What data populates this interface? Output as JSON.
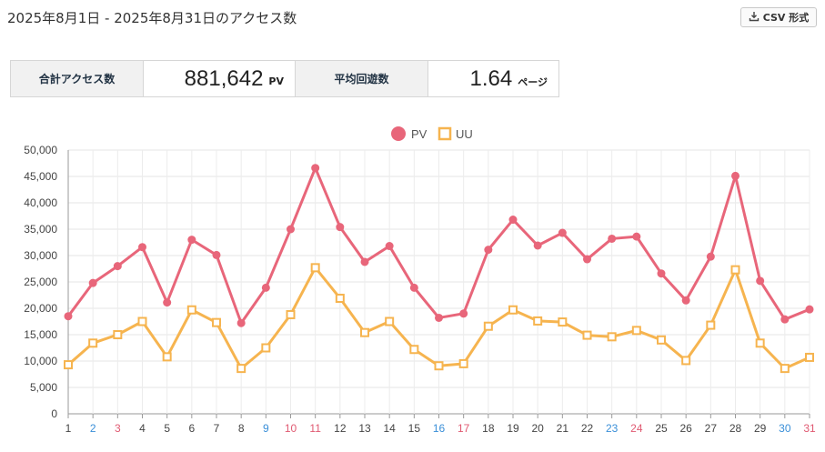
{
  "header": {
    "title": "2025年8月1日 - 2025年8月31日のアクセス数",
    "csv_label": "CSV 形式"
  },
  "stats": {
    "total_label": "合計アクセス数",
    "total_value": "881,642",
    "total_unit": "PV",
    "avg_label": "平均回遊数",
    "avg_value": "1.64",
    "avg_unit": "ページ"
  },
  "chart_data": {
    "type": "line",
    "x": [
      "1",
      "2",
      "3",
      "4",
      "5",
      "6",
      "7",
      "8",
      "9",
      "10",
      "11",
      "12",
      "13",
      "14",
      "15",
      "16",
      "17",
      "18",
      "19",
      "20",
      "21",
      "22",
      "23",
      "24",
      "25",
      "26",
      "27",
      "28",
      "29",
      "30",
      "31"
    ],
    "x_label_colors": {
      "default": "#444444",
      "saturday": "#3a8fd8",
      "sunday_holiday": "#e05a72"
    },
    "x_label_kind": [
      "d",
      "sa",
      "su",
      "d",
      "d",
      "d",
      "d",
      "d",
      "sa",
      "su",
      "su",
      "d",
      "d",
      "d",
      "d",
      "sa",
      "su",
      "d",
      "d",
      "d",
      "d",
      "d",
      "sa",
      "su",
      "d",
      "d",
      "d",
      "d",
      "d",
      "sa",
      "su"
    ],
    "ylim": [
      0,
      50000
    ],
    "yticks": [
      "0",
      "5,000",
      "10,000",
      "15,000",
      "20,000",
      "25,000",
      "30,000",
      "35,000",
      "40,000",
      "45,000",
      "50,000"
    ],
    "ytick_values": [
      0,
      5000,
      10000,
      15000,
      20000,
      25000,
      30000,
      35000,
      40000,
      45000,
      50000
    ],
    "grid": true,
    "legend_position": "top-center",
    "series": [
      {
        "name": "PV",
        "color": "#e8667a",
        "marker": "circle",
        "values": [
          18500,
          24800,
          28000,
          31600,
          21100,
          33000,
          30100,
          17200,
          23900,
          35000,
          46600,
          35400,
          28800,
          31800,
          23900,
          18200,
          19000,
          31100,
          36800,
          31900,
          34300,
          29300,
          33200,
          33600,
          26600,
          21500,
          29800,
          45100,
          25200,
          17900,
          19800
        ]
      },
      {
        "name": "UU",
        "color": "#f6b44f",
        "marker": "square",
        "values": [
          9300,
          13400,
          15000,
          17500,
          10800,
          19700,
          17300,
          8600,
          12500,
          18800,
          27700,
          21900,
          15400,
          17500,
          12200,
          9100,
          9500,
          16600,
          19700,
          17600,
          17400,
          14900,
          14600,
          15800,
          14000,
          10100,
          16800,
          27300,
          13400,
          8600,
          10700
        ]
      }
    ]
  }
}
